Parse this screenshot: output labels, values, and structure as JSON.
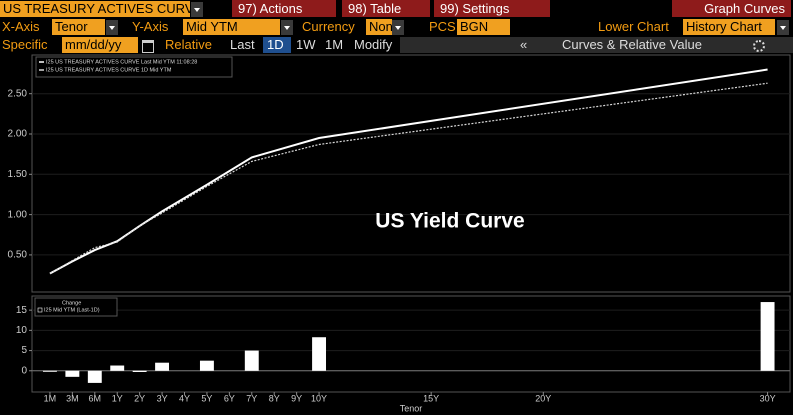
{
  "toolbar": {
    "security": "US TREASURY ACTIVES CURV",
    "menu": [
      "97) Actions",
      "98) Table",
      "99) Settings"
    ],
    "right_title": "Graph Curves",
    "row2": {
      "x_axis_label": "X-Axis",
      "x_axis": "Tenor",
      "y_axis_label": "Y-Axis",
      "y_axis": "Mid YTM",
      "currency_label": "Currency",
      "currency": "None",
      "pcs_label": "PCS",
      "pcs": "BGN",
      "lower_chart_label": "Lower Chart",
      "lower_chart": "History Chart"
    },
    "row3": {
      "specific_label": "Specific",
      "date": "mm/dd/yy",
      "relative_label": "Relative",
      "buttons": [
        "Last",
        "1D",
        "1W",
        "1M",
        "Modify"
      ],
      "collapse": "«",
      "panel_title": "Curves & Relative Value"
    }
  },
  "chart_data": [
    {
      "type": "line",
      "annotation": "US Yield Curve",
      "x": [
        0,
        1,
        2,
        3,
        4,
        5,
        7,
        9,
        12,
        32
      ],
      "series": [
        {
          "name": "I25 US TREASURY ACTIVES CURVE Last Mid YTM 11:08:28",
          "color": "#ffffff",
          "values": [
            0.27,
            0.42,
            0.56,
            0.67,
            0.86,
            1.04,
            1.37,
            1.71,
            1.95,
            2.8
          ]
        },
        {
          "name": "I25 US TREASURY ACTIVES CURVE 1D Mid YTM",
          "color": "#d8d8d8",
          "values": [
            0.27,
            0.43,
            0.59,
            0.66,
            0.86,
            1.02,
            1.35,
            1.66,
            1.87,
            2.63
          ]
        }
      ],
      "xlim": [
        -0.8,
        33
      ],
      "ylim": [
        0.04,
        2.98
      ],
      "yticks": [
        {
          "value": 0.5,
          "label": "0.50"
        },
        {
          "value": 1,
          "label": "1.00"
        },
        {
          "value": 1.5,
          "label": "1.50"
        },
        {
          "value": 2,
          "label": "2.00"
        },
        {
          "value": 2.5,
          "label": "2.50"
        }
      ],
      "grid": true
    },
    {
      "type": "bar",
      "legend_title": "Change",
      "xlabel": "Tenor",
      "x": [
        0,
        1,
        2,
        3,
        4,
        5,
        7,
        9,
        12,
        32
      ],
      "series": [
        {
          "name": "I25 Mid YTM (Last-1D)",
          "color": "#ffffff",
          "values": [
            -0.1,
            -1.5,
            -3,
            1.3,
            -0.3,
            2,
            2.5,
            5,
            8.3,
            17
          ]
        }
      ],
      "xlim": [
        -0.8,
        33
      ],
      "ylim": [
        -5.25,
        18.5
      ],
      "xticks": [
        {
          "value": 0,
          "label": "1M"
        },
        {
          "value": 1,
          "label": "3M"
        },
        {
          "value": 2,
          "label": "6M"
        },
        {
          "value": 3,
          "label": "1Y"
        },
        {
          "value": 4,
          "label": "2Y"
        },
        {
          "value": 5,
          "label": "3Y"
        },
        {
          "value": 6,
          "label": "4Y"
        },
        {
          "value": 7,
          "label": "5Y"
        },
        {
          "value": 8,
          "label": "6Y"
        },
        {
          "value": 9,
          "label": "7Y"
        },
        {
          "value": 10,
          "label": "8Y"
        },
        {
          "value": 11,
          "label": "9Y"
        },
        {
          "value": 12,
          "label": "10Y"
        },
        {
          "value": 17,
          "label": "15Y"
        },
        {
          "value": 22,
          "label": "20Y"
        },
        {
          "value": 32,
          "label": "30Y"
        }
      ],
      "yticks": [
        0,
        5,
        10,
        15
      ],
      "grid": true
    }
  ]
}
